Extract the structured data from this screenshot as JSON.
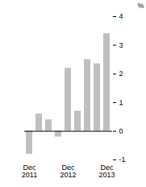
{
  "chart_data": {
    "type": "bar",
    "categories": [
      "Dec 2011",
      null,
      null,
      null,
      "Dec 2012",
      null,
      null,
      null,
      "Dec 2013"
    ],
    "values": [
      -0.8,
      0.6,
      0.4,
      -0.2,
      2.2,
      0.7,
      2.5,
      2.35,
      3.4
    ],
    "color": "#bfbfbf",
    "y_label": "%",
    "ylim": [
      -1,
      4
    ],
    "yticks": [
      -1,
      0,
      1,
      2,
      3,
      4
    ]
  }
}
